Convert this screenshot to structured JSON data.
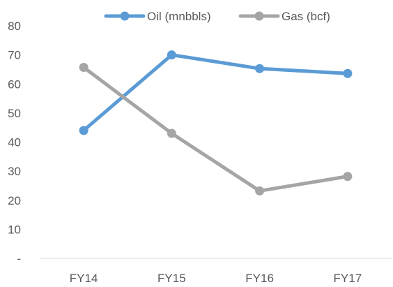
{
  "chart_data": {
    "type": "line",
    "categories": [
      "FY14",
      "FY15",
      "FY16",
      "FY17"
    ],
    "series": [
      {
        "name": "Oil (mnbbls)",
        "values": [
          44,
          70,
          65.3,
          63.6
        ],
        "color": "#5B9BD5"
      },
      {
        "name": "Gas (bcf)",
        "values": [
          65.7,
          43,
          23.2,
          28.2
        ],
        "color": "#A5A5A5"
      }
    ],
    "yticks": [
      "-",
      "10",
      "20",
      "30",
      "40",
      "50",
      "60",
      "70",
      "80"
    ],
    "ylim": [
      0,
      80
    ],
    "grid": false,
    "legend_position": "top-center",
    "title": "",
    "xlabel": "",
    "ylabel": ""
  }
}
